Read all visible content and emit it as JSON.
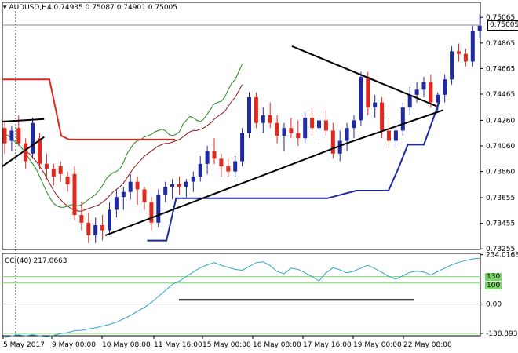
{
  "header": {
    "symbol": "AUDUSD,H4",
    "ohlc": "0.74935 0.75087 0.74901 0.75005"
  },
  "current_price": "0.75005",
  "cci_header": "CCI(40) 217.0663",
  "cci_levels": {
    "upper": "130",
    "mid_upper": "100",
    "zero": "0.00"
  },
  "colors": {
    "bull_candle": "#1f2aa0",
    "bear_candle": "#e0281e",
    "ma_fast": "#1f8a1f",
    "ma_slow": "#8b1a1a",
    "red_line": "#e0281e",
    "blue_line": "#1f2aa0",
    "trend_lines": "#000000",
    "cci_line": "#2aa6c8",
    "cci_levels": "#7dd86a"
  },
  "chart_data": [
    {
      "type": "candlestick",
      "title": "AUDUSD,H4",
      "y_ticks": [
        "0.75065",
        "0.74865",
        "0.74665",
        "0.74465",
        "0.74260",
        "0.74060",
        "0.73860",
        "0.73655",
        "0.73455",
        "0.73255"
      ],
      "y_range": [
        0.7325,
        0.7514
      ],
      "x_ticks": [
        "5 May 2017",
        "9 May 00:00",
        "10 May 08:00",
        "11 May 16:00",
        "15 May 00:00",
        "16 May 08:00",
        "17 May 16:00",
        "19 May 00:00",
        "22 May 08:00"
      ],
      "ohlc": [
        [
          0.742,
          0.7426,
          0.74,
          0.7408
        ],
        [
          0.741,
          0.7422,
          0.7402,
          0.7418
        ],
        [
          0.742,
          0.743,
          0.7406,
          0.7408
        ],
        [
          0.7408,
          0.7412,
          0.7388,
          0.7394
        ],
        [
          0.74,
          0.7428,
          0.7396,
          0.7424
        ],
        [
          0.7412,
          0.7416,
          0.7388,
          0.7392
        ],
        [
          0.7392,
          0.74,
          0.738,
          0.7388
        ],
        [
          0.7388,
          0.7392,
          0.7375,
          0.7382
        ],
        [
          0.739,
          0.7394,
          0.7378,
          0.7384
        ],
        [
          0.7382,
          0.7386,
          0.737,
          0.7376
        ],
        [
          0.7384,
          0.739,
          0.7348,
          0.7352
        ],
        [
          0.7352,
          0.7362,
          0.734,
          0.7346
        ],
        [
          0.7346,
          0.7354,
          0.733,
          0.7336
        ],
        [
          0.7336,
          0.735,
          0.733,
          0.7344
        ],
        [
          0.7344,
          0.7352,
          0.7332,
          0.734
        ],
        [
          0.734,
          0.7362,
          0.7336,
          0.7356
        ],
        [
          0.7356,
          0.7372,
          0.735,
          0.7366
        ],
        [
          0.7366,
          0.7374,
          0.7356,
          0.737
        ],
        [
          0.737,
          0.7384,
          0.7364,
          0.7378
        ],
        [
          0.7378,
          0.7382,
          0.736,
          0.7372
        ],
        [
          0.7372,
          0.7374,
          0.7356,
          0.7362
        ],
        [
          0.7362,
          0.7366,
          0.734,
          0.7346
        ],
        [
          0.7346,
          0.7372,
          0.7342,
          0.7368
        ],
        [
          0.7368,
          0.7378,
          0.7362,
          0.7374
        ],
        [
          0.7374,
          0.738,
          0.7364,
          0.7376
        ],
        [
          0.7376,
          0.7382,
          0.7368,
          0.7374
        ],
        [
          0.7374,
          0.738,
          0.7366,
          0.7378
        ],
        [
          0.7378,
          0.7386,
          0.737,
          0.7382
        ],
        [
          0.7382,
          0.7398,
          0.7378,
          0.7392
        ],
        [
          0.7392,
          0.7406,
          0.7384,
          0.7402
        ],
        [
          0.7402,
          0.7412,
          0.7392,
          0.7396
        ],
        [
          0.7396,
          0.74,
          0.7382,
          0.739
        ],
        [
          0.739,
          0.7396,
          0.7382,
          0.7386
        ],
        [
          0.7386,
          0.7398,
          0.7382,
          0.7394
        ],
        [
          0.7394,
          0.742,
          0.739,
          0.7416
        ],
        [
          0.7416,
          0.7448,
          0.7412,
          0.7444
        ],
        [
          0.7444,
          0.7448,
          0.742,
          0.7424
        ],
        [
          0.7424,
          0.7436,
          0.7416,
          0.743
        ],
        [
          0.743,
          0.744,
          0.742,
          0.7424
        ],
        [
          0.7424,
          0.743,
          0.7408,
          0.7414
        ],
        [
          0.7414,
          0.7424,
          0.7402,
          0.742
        ],
        [
          0.742,
          0.7428,
          0.7412,
          0.7416
        ],
        [
          0.7416,
          0.7426,
          0.7406,
          0.7412
        ],
        [
          0.7412,
          0.7432,
          0.7408,
          0.7428
        ],
        [
          0.7428,
          0.7436,
          0.7414,
          0.742
        ],
        [
          0.742,
          0.7428,
          0.741,
          0.7426
        ],
        [
          0.7426,
          0.7434,
          0.7414,
          0.7418
        ],
        [
          0.7418,
          0.7424,
          0.7396,
          0.74
        ],
        [
          0.74,
          0.7418,
          0.7394,
          0.741
        ],
        [
          0.741,
          0.7424,
          0.7402,
          0.742
        ],
        [
          0.742,
          0.743,
          0.7412,
          0.7426
        ],
        [
          0.7426,
          0.7464,
          0.7422,
          0.746
        ],
        [
          0.746,
          0.7464,
          0.743,
          0.7436
        ],
        [
          0.7436,
          0.7446,
          0.7428,
          0.744
        ],
        [
          0.744,
          0.7444,
          0.7412,
          0.7418
        ],
        [
          0.7418,
          0.7428,
          0.7404,
          0.741
        ],
        [
          0.741,
          0.7424,
          0.7404,
          0.7418
        ],
        [
          0.7418,
          0.744,
          0.7414,
          0.7436
        ],
        [
          0.7436,
          0.7452,
          0.743,
          0.7446
        ],
        [
          0.7446,
          0.7456,
          0.744,
          0.745
        ],
        [
          0.745,
          0.746,
          0.7444,
          0.7456
        ],
        [
          0.7456,
          0.7462,
          0.7436,
          0.744
        ],
        [
          0.744,
          0.7448,
          0.7432,
          0.7446
        ],
        [
          0.7446,
          0.7462,
          0.744,
          0.7458
        ],
        [
          0.7458,
          0.7484,
          0.7454,
          0.748
        ],
        [
          0.748,
          0.7486,
          0.7472,
          0.7478
        ],
        [
          0.7478,
          0.7482,
          0.7468,
          0.7472
        ],
        [
          0.7472,
          0.75,
          0.7468,
          0.7496
        ],
        [
          0.7496,
          0.7509,
          0.749,
          0.75
        ]
      ],
      "ma_fast": [
        0.7415,
        0.7414,
        0.7412,
        0.7409,
        0.7407,
        0.7404,
        0.74,
        0.7396,
        0.7392,
        0.7388,
        0.7382,
        0.7376,
        0.737,
        0.7365,
        0.7361,
        0.7359,
        0.7358,
        0.7358,
        0.7359,
        0.736,
        0.736,
        0.7359,
        0.736,
        0.7362,
        0.7364,
        0.7366,
        0.7368,
        0.7371,
        0.7375,
        0.738,
        0.7383,
        0.7385,
        0.7386,
        0.7388,
        0.7393,
        0.74,
        0.7404,
        0.7408,
        0.741,
        0.7411,
        0.7413,
        0.7414,
        0.7415,
        0.7417,
        0.7418,
        0.7419,
        0.7418,
        0.7415,
        0.7414,
        0.7415,
        0.7417,
        0.7423,
        0.7426,
        0.7429,
        0.7428,
        0.7426,
        0.7425,
        0.7427,
        0.7431,
        0.7435,
        0.7439,
        0.744,
        0.7441,
        0.7444,
        0.745,
        0.7455,
        0.7458,
        0.7464,
        0.747
      ],
      "ma_slow": [
        null,
        null,
        null,
        null,
        null,
        null,
        0.7402,
        0.74,
        0.7397,
        0.7394,
        0.739,
        0.7386,
        0.7381,
        0.7376,
        0.7371,
        0.7367,
        0.7364,
        0.7361,
        0.7359,
        0.7357,
        0.7356,
        0.7355,
        0.7355,
        0.7356,
        0.7357,
        0.7358,
        0.7359,
        0.736,
        0.7362,
        0.7364,
        0.7367,
        0.737,
        0.7372,
        0.7374,
        0.7377,
        0.7381,
        0.7385,
        0.7389,
        0.7392,
        0.7395,
        0.7398,
        0.74,
        0.7402,
        0.7404,
        0.7406,
        0.7407,
        0.7408,
        0.7408,
        0.7409,
        0.741,
        0.7411,
        0.7413,
        0.7415,
        0.7417,
        0.7418,
        0.7418,
        0.7419,
        0.742,
        0.7422,
        0.7424,
        0.7427,
        0.7429,
        0.7431,
        0.7433,
        0.7437,
        0.7441,
        0.7444,
        0.7449,
        0.7454
      ],
      "red_line": [
        [
          0,
          0.7458
        ],
        [
          12,
          0.7458
        ],
        [
          15,
          0.7414
        ],
        [
          17,
          0.7411
        ],
        [
          44,
          0.7411
        ]
      ],
      "blue_line": [
        [
          45,
          0.7332
        ],
        [
          51,
          0.7332
        ],
        [
          54,
          0.7365
        ],
        [
          75,
          0.7365
        ],
        [
          78,
          0.7365
        ],
        [
          101,
          0.7365
        ],
        [
          110,
          0.7371
        ],
        [
          120,
          0.7371
        ],
        [
          123,
          0.7388
        ],
        [
          126,
          0.7407
        ],
        [
          131,
          0.7407
        ],
        [
          136,
          0.7442
        ]
      ],
      "trend_lines": [
        [
          [
            0,
            0.739
          ],
          [
            13,
            0.7413
          ]
        ],
        [
          [
            0,
            0.7425
          ],
          [
            13,
            0.7427
          ]
        ],
        [
          [
            32,
            0.7336
          ],
          [
            107,
            0.7408
          ]
        ],
        [
          [
            107,
            0.7408
          ],
          [
            137,
            0.7434
          ]
        ],
        [
          [
            90,
            0.7484
          ],
          [
            135,
            0.7437
          ]
        ]
      ]
    },
    {
      "type": "line",
      "title": "CCI(40) 217.0663",
      "y_ticks": [
        "234.0168",
        "130",
        "100",
        "0.00",
        "-138.8935"
      ],
      "y_range": [
        -150,
        240
      ],
      "values": [
        -158,
        -150,
        -146,
        -150,
        -145,
        -150,
        -155,
        -148,
        -140,
        -135,
        -126,
        -124,
        -118,
        -112,
        -104,
        -96,
        -86,
        -70,
        -54,
        -34,
        -16,
        8,
        36,
        64,
        94,
        108,
        130,
        152,
        172,
        186,
        196,
        184,
        174,
        164,
        160,
        178,
        196,
        200,
        182,
        154,
        144,
        170,
        164,
        148,
        130,
        110,
        148,
        172,
        162,
        148,
        156,
        170,
        184,
        168,
        150,
        130,
        118,
        134,
        150,
        156,
        152,
        138,
        154,
        170,
        186,
        198,
        206,
        214,
        217
      ],
      "horizontal_line": [
        [
          45,
          20
        ],
        [
          105,
          20
        ]
      ]
    }
  ]
}
